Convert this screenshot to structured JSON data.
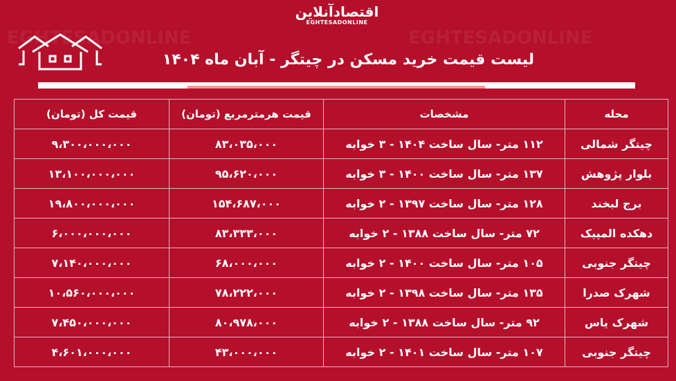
{
  "brand": {
    "logo_fa": "اقتصادآنلاین",
    "logo_en": "EGHTESADONLINE"
  },
  "title": "لیست قیمت خرید مسکن در چیتگر - آبان ماه ۱۴۰۴",
  "table": {
    "headers": [
      "محله",
      "مشخصات",
      "قیمت هرمترمربع (تومان)",
      "قیمت کل (تومان)"
    ],
    "rows": [
      [
        "چیتگر شمالی",
        "۱۱۲ متر- سال ساخت ۱۴۰۴ - ۳ خوابه",
        "۸۳،۰۳۵،۰۰۰",
        "۹،۳۰۰،۰۰۰،۰۰۰"
      ],
      [
        "بلوار پژوهش",
        "۱۳۷ متر- سال ساخت ۱۴۰۰ - ۳ خوابه",
        "۹۵،۶۲۰،۰۰۰",
        "۱۳،۱۰۰،۰۰۰،۰۰۰"
      ],
      [
        "برج لبخند",
        "۱۲۸ متر- سال ساخت ۱۳۹۷ - ۲ خوابه",
        "۱۵۴،۶۸۷،۰۰۰",
        "۱۹،۸۰۰،۰۰۰،۰۰۰"
      ],
      [
        "دهکده المپیک",
        "۷۲ متر- سال ساخت ۱۳۸۸ - ۲ خوابه",
        "۸۳،۳۳۳،۰۰۰",
        "۶،۰۰۰،۰۰۰،۰۰۰"
      ],
      [
        "چیتگر جنوبی",
        "۱۰۵ متر- سال ساخت ۱۴۰۰ - ۲ خوابه",
        "۶۸،۰۰۰،۰۰۰",
        "۷،۱۴۰،۰۰۰،۰۰۰"
      ],
      [
        "شهرک صدرا",
        "۱۳۵ متر- سال ساخت ۱۳۹۸ - ۲ خوابه",
        "۷۸،۲۲۲،۰۰۰",
        "۱۰،۵۶۰،۰۰۰،۰۰۰"
      ],
      [
        "شهرک یاس",
        "۹۲ متر- سال ساخت ۱۳۸۸ - ۲ خوابه",
        "۸۰،۹۷۸،۰۰۰",
        "۷،۴۵۰،۰۰۰،۰۰۰"
      ],
      [
        "چیتگر جنوبی",
        "۱۰۷ متر- سال ساخت ۱۴۰۱ - ۲ خوابه",
        "۴۳،۰۰۰،۰۰۰",
        "۴،۶۰۱،۰۰۰،۰۰۰"
      ]
    ]
  },
  "colors": {
    "background": "#b40f2b",
    "accent_bar": "#e7a08e",
    "lines": "#e9b7c0"
  },
  "icons": [
    "houses-icon"
  ]
}
